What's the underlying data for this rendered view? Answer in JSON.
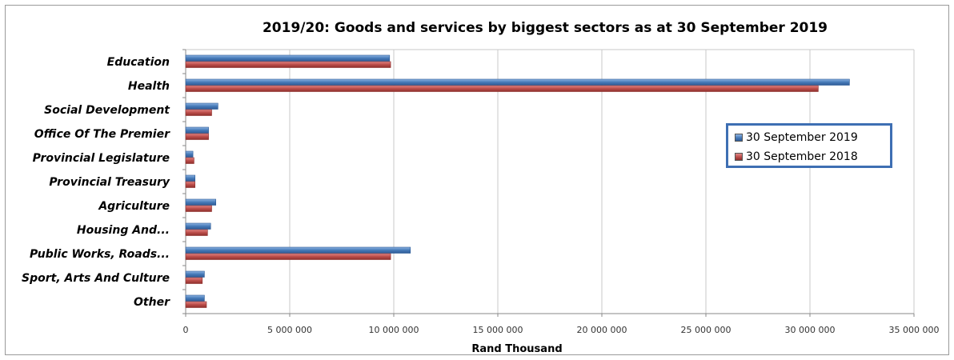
{
  "chart_data": {
    "type": "bar",
    "orientation": "horizontal",
    "title": "2019/20: Goods and services by biggest sectors as at 30 September 2019",
    "xlabel": "Rand Thousand",
    "ylabel": "",
    "xlim": [
      0,
      35000000
    ],
    "x_ticks": [
      "0",
      "5 000 000",
      "10 000 000",
      "15 000 000",
      "20 000 000",
      "25 000 000",
      "30 000 000",
      "35 000 000"
    ],
    "x_tick_values": [
      0,
      5000000,
      10000000,
      15000000,
      20000000,
      25000000,
      30000000,
      35000000
    ],
    "grid": "vertical",
    "legend_position": "right",
    "categories": [
      "Education",
      "Health",
      "Social Development",
      "Office Of The Premier",
      "Provincial Legislature",
      "Provincial Treasury",
      "Agriculture",
      "Housing And...",
      "Public Works, Roads...",
      "Sport, Arts And Culture",
      "Other"
    ],
    "series": [
      {
        "name": "30 September 2019",
        "color": "#4a7ebb",
        "values": [
          9800000,
          31900000,
          1550000,
          1100000,
          350000,
          450000,
          1450000,
          1200000,
          10800000,
          900000,
          900000
        ]
      },
      {
        "name": "30 September 2018",
        "color": "#c0504d",
        "values": [
          9850000,
          30400000,
          1250000,
          1100000,
          400000,
          450000,
          1250000,
          1050000,
          9850000,
          800000,
          1000000
        ]
      }
    ]
  }
}
